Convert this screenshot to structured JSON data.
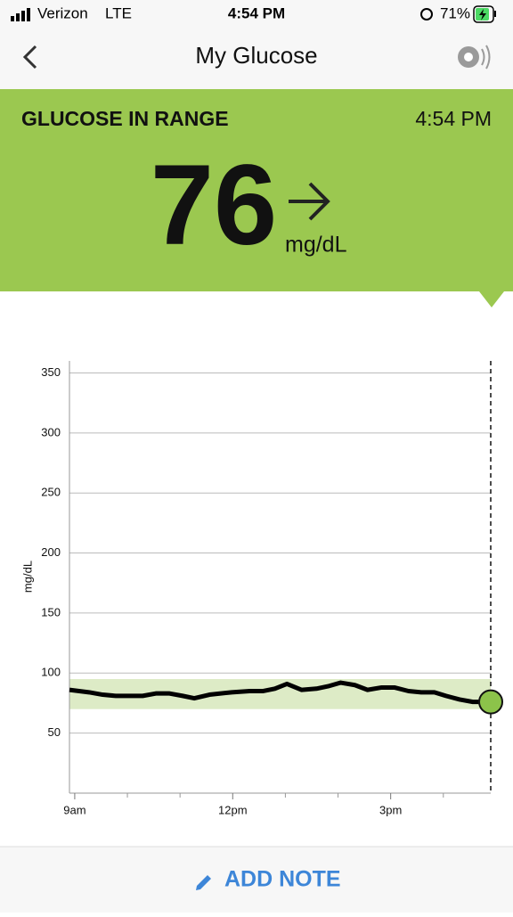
{
  "status_bar": {
    "carrier": "Verizon",
    "network": "LTE",
    "time": "4:54 PM",
    "battery": "71%"
  },
  "header": {
    "title": "My Glucose"
  },
  "reading": {
    "status": "GLUCOSE IN RANGE",
    "time": "4:54 PM",
    "value": 76,
    "unit": "mg/dL"
  },
  "chart_data": {
    "type": "line",
    "y_label": "mg/dL",
    "x": [
      8.9,
      9.27,
      9.53,
      9.78,
      10.29,
      10.54,
      10.8,
      11.05,
      11.27,
      11.56,
      11.98,
      12.32,
      12.58,
      12.8,
      13.03,
      13.31,
      13.59,
      13.81,
      14.05,
      14.32,
      14.56,
      14.83,
      15.07,
      15.34,
      15.58,
      15.83,
      16.05,
      16.31,
      16.56,
      16.9
    ],
    "series": [
      {
        "color": "#000000",
        "values": [
          86,
          84,
          82,
          81,
          81,
          83,
          83,
          81,
          79,
          82,
          84,
          85,
          85,
          87,
          91,
          86,
          87,
          89,
          92,
          90,
          86,
          88,
          88,
          85,
          84,
          84,
          81,
          78,
          76,
          76
        ]
      }
    ],
    "target_range": [
      70,
      95
    ],
    "target_color": "#ddebc6",
    "point_color": "#8cc34a",
    "xlim": [
      8.9,
      16.9
    ],
    "ylim": [
      0,
      360
    ],
    "yticks": [
      50,
      100,
      150,
      200,
      250,
      300,
      350
    ],
    "xticks": [
      {
        "value": 9,
        "label": "9am"
      },
      {
        "value": 12,
        "label": "12pm"
      },
      {
        "value": 15,
        "label": "3pm"
      }
    ],
    "xminorticks": [
      10,
      11,
      13,
      14,
      16
    ],
    "grid": true
  },
  "footer": {
    "action": "ADD NOTE"
  }
}
